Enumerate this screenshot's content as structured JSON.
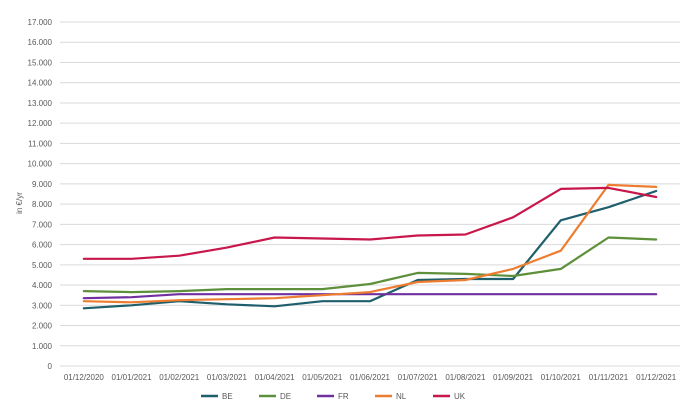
{
  "chart_data": {
    "type": "line",
    "title": "",
    "xlabel": "",
    "ylabel": "in €/yr",
    "categories": [
      "01/12/2020",
      "01/01/2021",
      "01/02/2021",
      "01/03/2021",
      "01/04/2021",
      "01/05/2021",
      "01/06/2021",
      "01/07/2021",
      "01/08/2021",
      "01/09/2021",
      "01/10/2021",
      "01/11/2021",
      "01/12/2021"
    ],
    "yticks": [
      "0",
      "1.000",
      "2.000",
      "3.000",
      "4.000",
      "5.000",
      "6.000",
      "7.000",
      "8.000",
      "9.000",
      "10.000",
      "11.000",
      "12.000",
      "13.000",
      "14.000",
      "15.000",
      "16.000",
      "17.000"
    ],
    "ylim": [
      0,
      17000
    ],
    "grid": true,
    "legend_position": "bottom",
    "series": [
      {
        "name": "BE",
        "color": "#1f5f6b",
        "values": [
          2850,
          3000,
          3200,
          3050,
          2950,
          3200,
          3200,
          4250,
          4300,
          4300,
          7200,
          7850,
          8650
        ]
      },
      {
        "name": "DE",
        "color": "#5e8f3a",
        "values": [
          3700,
          3650,
          3700,
          3800,
          3800,
          3800,
          4050,
          4600,
          4550,
          4450,
          4800,
          6350,
          6250
        ]
      },
      {
        "name": "FR",
        "color": "#7030a0",
        "values": [
          3350,
          3400,
          3550,
          3550,
          3550,
          3550,
          3550,
          3550,
          3550,
          3550,
          3550,
          3550,
          3550
        ]
      },
      {
        "name": "NL",
        "color": "#ed7d31",
        "values": [
          3200,
          3150,
          3250,
          3300,
          3350,
          3500,
          3650,
          4150,
          4250,
          4800,
          5700,
          8950,
          8850
        ]
      },
      {
        "name": "UK",
        "color": "#c8174a",
        "values": [
          5300,
          5300,
          5450,
          5850,
          6350,
          6300,
          6250,
          6450,
          6500,
          7350,
          8750,
          8800,
          8350
        ]
      }
    ]
  }
}
